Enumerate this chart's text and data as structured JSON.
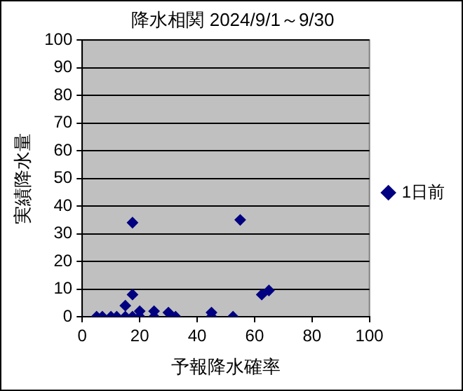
{
  "chart_data": {
    "type": "scatter",
    "title": "降水相関 2024/9/1～9/30",
    "xlabel": "予報降水確率",
    "ylabel": "実績降水量",
    "series": [
      {
        "name": "1日前",
        "color": "#000080",
        "x": [
          5,
          7,
          10,
          12,
          15,
          17.5,
          15,
          17.5,
          17.5,
          20,
          20,
          25,
          25,
          30,
          32.5,
          45,
          45,
          52.5,
          55,
          62.5,
          65
        ],
        "values": [
          0,
          0,
          0,
          0,
          0,
          0,
          4,
          8,
          34,
          0,
          2,
          0,
          2,
          1.5,
          0,
          0,
          1.5,
          0,
          35,
          8,
          9.5
        ]
      }
    ],
    "xlim": [
      0,
      100
    ],
    "xticks": [
      0,
      20,
      40,
      60,
      80,
      100
    ],
    "ylim": [
      0,
      100
    ],
    "yticks": [
      0,
      10,
      20,
      30,
      40,
      50,
      60,
      70,
      80,
      90,
      100
    ],
    "grid": "y",
    "legend": "right",
    "marker": "diamond"
  }
}
